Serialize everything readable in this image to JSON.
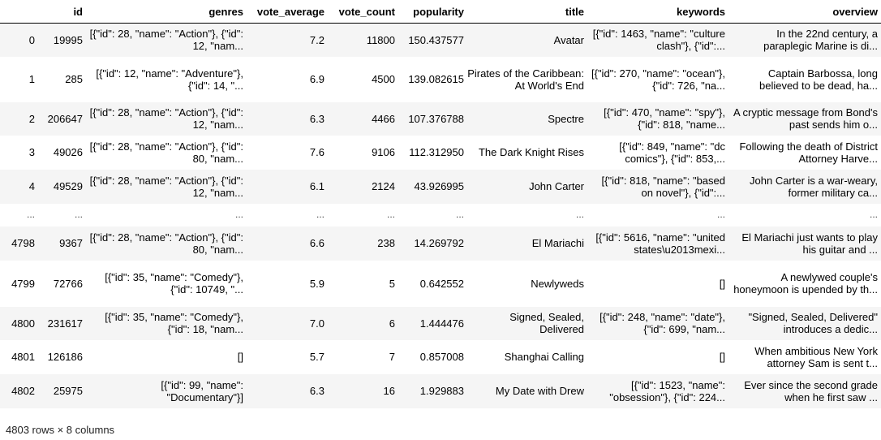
{
  "columns": [
    "",
    "id",
    "genres",
    "vote_average",
    "vote_count",
    "popularity",
    "title",
    "keywords",
    "overview"
  ],
  "rows": [
    {
      "index": "0",
      "id": "19995",
      "genres": "[{\"id\": 28, \"name\": \"Action\"}, {\"id\": 12, \"nam...",
      "vote_average": "7.2",
      "vote_count": "11800",
      "popularity": "150.437577",
      "title": "Avatar",
      "keywords": "[{\"id\": 1463, \"name\": \"culture clash\"}, {\"id\":...",
      "overview": "In the 22nd century, a paraplegic Marine is di..."
    },
    {
      "index": "1",
      "id": "285",
      "genres": "[{\"id\": 12, \"name\": \"Adventure\"}, {\"id\": 14, \"...",
      "vote_average": "6.9",
      "vote_count": "4500",
      "popularity": "139.082615",
      "title": "Pirates of the Caribbean: At World's End",
      "keywords": "[{\"id\": 270, \"name\": \"ocean\"}, {\"id\": 726, \"na...",
      "overview": "Captain Barbossa, long believed to be dead, ha..."
    },
    {
      "index": "2",
      "id": "206647",
      "genres": "[{\"id\": 28, \"name\": \"Action\"}, {\"id\": 12, \"nam...",
      "vote_average": "6.3",
      "vote_count": "4466",
      "popularity": "107.376788",
      "title": "Spectre",
      "keywords": "[{\"id\": 470, \"name\": \"spy\"}, {\"id\": 818, \"name...",
      "overview": "A cryptic message from Bond's past sends him o..."
    },
    {
      "index": "3",
      "id": "49026",
      "genres": "[{\"id\": 28, \"name\": \"Action\"}, {\"id\": 80, \"nam...",
      "vote_average": "7.6",
      "vote_count": "9106",
      "popularity": "112.312950",
      "title": "The Dark Knight Rises",
      "keywords": "[{\"id\": 849, \"name\": \"dc comics\"}, {\"id\": 853,...",
      "overview": "Following the death of District Attorney Harve..."
    },
    {
      "index": "4",
      "id": "49529",
      "genres": "[{\"id\": 28, \"name\": \"Action\"}, {\"id\": 12, \"nam...",
      "vote_average": "6.1",
      "vote_count": "2124",
      "popularity": "43.926995",
      "title": "John Carter",
      "keywords": "[{\"id\": 818, \"name\": \"based on novel\"}, {\"id\":...",
      "overview": "John Carter is a war-weary, former military ca..."
    },
    {
      "index": "...",
      "id": "...",
      "genres": "...",
      "vote_average": "...",
      "vote_count": "...",
      "popularity": "...",
      "title": "...",
      "keywords": "...",
      "overview": "..."
    },
    {
      "index": "4798",
      "id": "9367",
      "genres": "[{\"id\": 28, \"name\": \"Action\"}, {\"id\": 80, \"nam...",
      "vote_average": "6.6",
      "vote_count": "238",
      "popularity": "14.269792",
      "title": "El Mariachi",
      "keywords": "[{\"id\": 5616, \"name\": \"united states\\u2013mexi...",
      "overview": "El Mariachi just wants to play his guitar and ..."
    },
    {
      "index": "4799",
      "id": "72766",
      "genres": "[{\"id\": 35, \"name\": \"Comedy\"}, {\"id\": 10749, \"...",
      "vote_average": "5.9",
      "vote_count": "5",
      "popularity": "0.642552",
      "title": "Newlyweds",
      "keywords": "[]",
      "overview": "A newlywed couple's honeymoon is upended by th..."
    },
    {
      "index": "4800",
      "id": "231617",
      "genres": "[{\"id\": 35, \"name\": \"Comedy\"}, {\"id\": 18, \"nam...",
      "vote_average": "7.0",
      "vote_count": "6",
      "popularity": "1.444476",
      "title": "Signed, Sealed, Delivered",
      "keywords": "[{\"id\": 248, \"name\": \"date\"}, {\"id\": 699, \"nam...",
      "overview": "\"Signed, Sealed, Delivered\" introduces a dedic..."
    },
    {
      "index": "4801",
      "id": "126186",
      "genres": "[]",
      "vote_average": "5.7",
      "vote_count": "7",
      "popularity": "0.857008",
      "title": "Shanghai Calling",
      "keywords": "[]",
      "overview": "When ambitious New York attorney Sam is sent t..."
    },
    {
      "index": "4802",
      "id": "25975",
      "genres": "[{\"id\": 99, \"name\": \"Documentary\"}]",
      "vote_average": "6.3",
      "vote_count": "16",
      "popularity": "1.929883",
      "title": "My Date with Drew",
      "keywords": "[{\"id\": 1523, \"name\": \"obsession\"}, {\"id\": 224...",
      "overview": "Ever since the second grade when he first saw ..."
    }
  ],
  "footer": "4803 rows × 8 columns"
}
